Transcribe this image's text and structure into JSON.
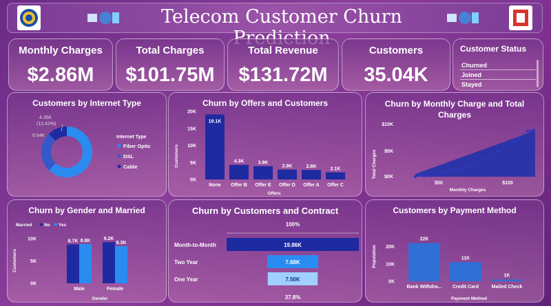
{
  "header": {
    "title": "Telecom Customer Churn Prediction"
  },
  "kpis": [
    {
      "label": "Monthly Charges",
      "value": "$2.86M"
    },
    {
      "label": "Total Charges",
      "value": "$101.75M"
    },
    {
      "label": "Total Revenue",
      "value": "$131.72M"
    },
    {
      "label": "Customers",
      "value": "35.04K"
    }
  ],
  "status": {
    "title": "Customer Status",
    "items": [
      "Churned",
      "Joined",
      "Stayed"
    ]
  },
  "internet": {
    "title": "Customers by Internet Type",
    "legend_title": "Internet Type",
    "labels": [
      "4.35K",
      "(12.42%)",
      "8.64K"
    ]
  },
  "offers": {
    "title": "Churn by Offers and Customers"
  },
  "scatter": {
    "title": "Churn by Monthly Charge and Total Charges"
  },
  "gender": {
    "title": "Churn by Gender and Married",
    "legend_title": "Married"
  },
  "contract": {
    "title": "Churn by Customers and Contract",
    "top_pct": "100%",
    "bottom_pct": "37.8%"
  },
  "payment": {
    "title": "Customers by Payment Method"
  },
  "colors": {
    "dark": "#1e2aa0",
    "mid": "#2f6fd6",
    "light": "#2a8cf0",
    "pale": "#9fd0ff"
  },
  "chart_data": [
    {
      "type": "pie",
      "title": "Customers by Internet Type",
      "legend_title": "Internet Type",
      "categories": [
        "Fiber Optic",
        "DSL",
        "Cable"
      ],
      "values": [
        21.37,
        8.64,
        4.35
      ],
      "labels": [
        "",
        "8.64K",
        "4.35K (12.42%)"
      ]
    },
    {
      "type": "bar",
      "title": "Churn by Offers and Customers",
      "categories": [
        "None",
        "Offer B",
        "Offer E",
        "Offer D",
        "Offer A",
        "Offer C"
      ],
      "values": [
        19.1,
        4.3,
        3.9,
        2.9,
        2.8,
        2.1
      ],
      "labels": [
        "19.1K",
        "4.3K",
        "3.9K",
        "2.9K",
        "2.8K",
        "2.1K"
      ],
      "xlabel": "Offers",
      "ylabel": "Customers",
      "ticks": [
        "0K",
        "5K",
        "10K",
        "15K",
        "20K"
      ],
      "ylim": [
        0,
        20
      ]
    },
    {
      "type": "scatter",
      "title": "Churn by Monthly Charge and Total Charges",
      "xlabel": "Monthly Charges",
      "ylabel": "Total Charges",
      "xticks": [
        "$50",
        "$100"
      ],
      "yticks": [
        "$0K",
        "$5K",
        "$10K"
      ]
    },
    {
      "type": "bar",
      "title": "Churn by Gender and Married",
      "categories": [
        "Male",
        "Female"
      ],
      "series": [
        {
          "name": "No",
          "values": [
            8.7,
            9.2
          ],
          "labels": [
            "8.7K",
            "9.2K"
          ]
        },
        {
          "name": "Yes",
          "values": [
            8.8,
            8.3
          ],
          "labels": [
            "8.8K",
            "8.3K"
          ]
        }
      ],
      "xlabel": "Gender",
      "ylabel": "Customers",
      "ticks": [
        "0K",
        "5K",
        "10K"
      ],
      "ylim": [
        0,
        10
      ]
    },
    {
      "type": "bar",
      "title": "Churn by Customers and Contract",
      "categories": [
        "Month-to-Month",
        "Two Year",
        "One Year"
      ],
      "values": [
        19.86,
        7.68,
        7.5
      ],
      "labels": [
        "19.86K",
        "7.68K",
        "7.50K"
      ]
    },
    {
      "type": "bar",
      "title": "Customers by Payment Method",
      "categories": [
        "Bank Withdra...",
        "Credit Card",
        "Mailed Check"
      ],
      "values": [
        22,
        11,
        1
      ],
      "labels": [
        "22K",
        "11K",
        "1K"
      ],
      "xlabel": "Payment Method",
      "ylabel": "Population",
      "ticks": [
        "0K",
        "10K",
        "20K"
      ],
      "ylim": [
        0,
        25
      ]
    }
  ]
}
